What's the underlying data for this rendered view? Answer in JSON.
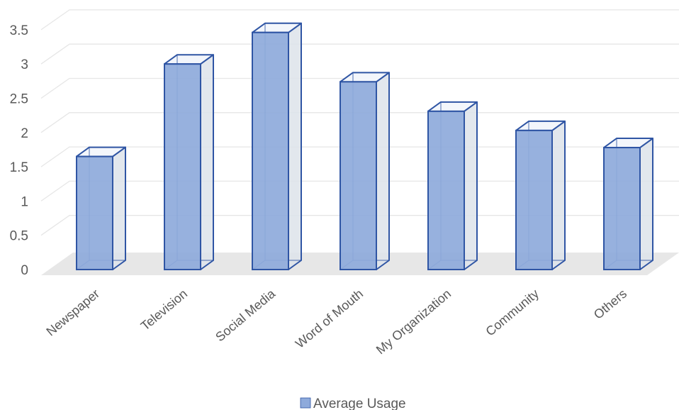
{
  "chart_data": {
    "type": "bar",
    "categories": [
      "Newspaper",
      "Television",
      "Social Media",
      "Word of Mouth",
      "My Organization",
      "Community",
      "Others"
    ],
    "series": [
      {
        "name": "Average Usage",
        "values": [
          1.65,
          3.0,
          3.46,
          2.74,
          2.31,
          2.03,
          1.78
        ]
      }
    ],
    "y_ticks": [
      "0",
      "0.5",
      "1",
      "1.5",
      "2",
      "2.5",
      "3",
      "3.5"
    ],
    "ylim": [
      0,
      3.5
    ],
    "grid": true,
    "legend": "bottom",
    "style": "3d-column",
    "colors": {
      "bar_front": "#8eaadb",
      "bar_side": "#dde3ea",
      "bar_edge": "#2f55a4",
      "gridline": "#e6e6e6",
      "floor": "#e7e7e7"
    }
  }
}
